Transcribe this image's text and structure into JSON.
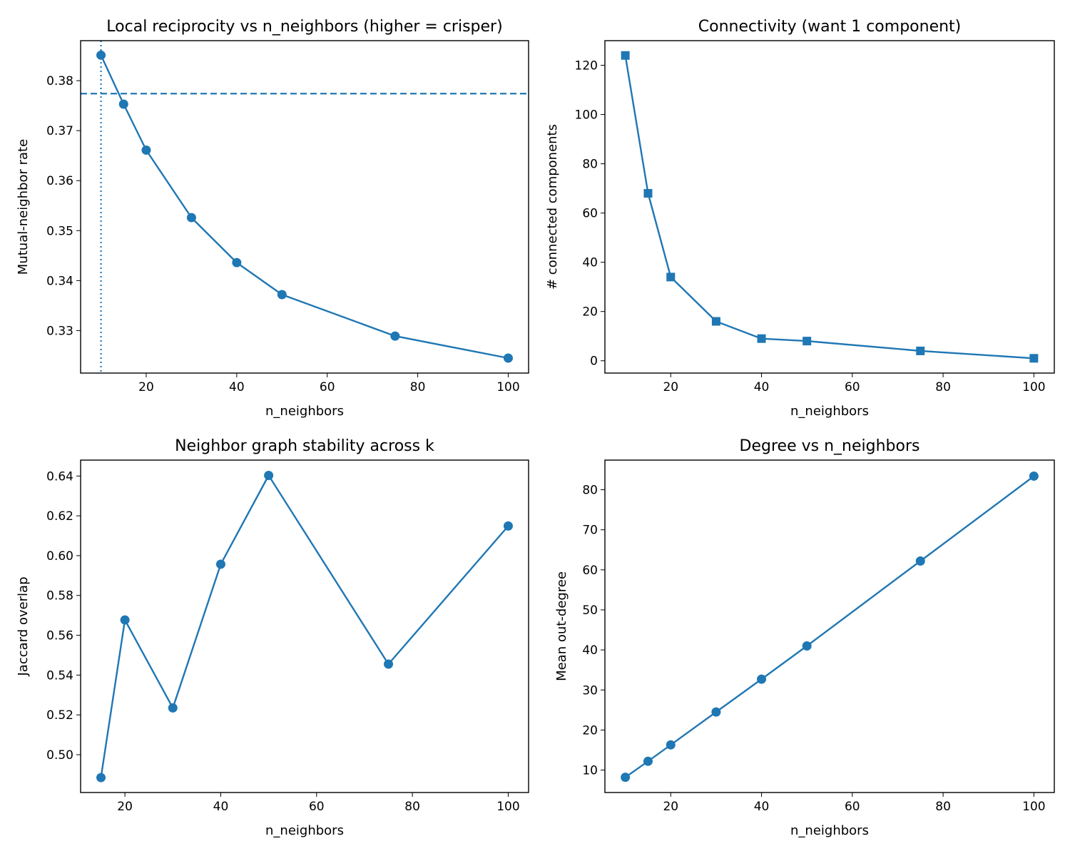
{
  "chart_data": [
    {
      "type": "line",
      "title": "Local reciprocity vs n_neighbors (higher = crisper)",
      "xlabel": "n_neighbors",
      "ylabel": "Mutual-neighbor rate",
      "xlim": [
        5.5,
        104.5
      ],
      "ylim": [
        0.3215,
        0.388
      ],
      "xticks": [
        20,
        40,
        60,
        80,
        100
      ],
      "yticks": [
        0.33,
        0.34,
        0.35,
        0.36,
        0.37,
        0.38
      ],
      "tick_decimals": 2,
      "marker": "circle",
      "color": "#1f77b4",
      "grid": false,
      "x": [
        10,
        15,
        20,
        30,
        40,
        50,
        75,
        100
      ],
      "y": [
        0.3851,
        0.3753,
        0.3661,
        0.3526,
        0.3436,
        0.3372,
        0.3289,
        0.3245
      ],
      "hline": {
        "y": 0.3774,
        "style": "dashed"
      },
      "vline": {
        "x": 10,
        "style": "dotted"
      }
    },
    {
      "type": "line",
      "title": "Connectivity (want 1 component)",
      "xlabel": "n_neighbors",
      "ylabel": "# connected components",
      "xlim": [
        5.5,
        104.5
      ],
      "ylim": [
        -5,
        130
      ],
      "xticks": [
        20,
        40,
        60,
        80,
        100
      ],
      "yticks": [
        0,
        20,
        40,
        60,
        80,
        100,
        120
      ],
      "tick_decimals": 0,
      "marker": "square",
      "color": "#1f77b4",
      "grid": false,
      "x": [
        10,
        15,
        20,
        30,
        40,
        50,
        75,
        100
      ],
      "y": [
        124,
        68,
        34,
        16,
        9,
        8,
        4,
        1
      ]
    },
    {
      "type": "line",
      "title": "Neighbor graph stability across k",
      "xlabel": "n_neighbors",
      "ylabel": "Jaccard overlap",
      "xlim": [
        10.75,
        104.25
      ],
      "ylim": [
        0.481,
        0.648
      ],
      "xticks": [
        20,
        40,
        60,
        80,
        100
      ],
      "yticks": [
        0.5,
        0.52,
        0.54,
        0.56,
        0.58,
        0.6,
        0.62,
        0.64
      ],
      "tick_decimals": 2,
      "marker": "circle",
      "color": "#1f77b4",
      "grid": false,
      "x": [
        15,
        20,
        30,
        40,
        50,
        75,
        100
      ],
      "y": [
        0.4885,
        0.5677,
        0.5235,
        0.5957,
        0.6403,
        0.5455,
        0.6149
      ]
    },
    {
      "type": "line",
      "title": "Degree vs n_neighbors",
      "xlabel": "n_neighbors",
      "ylabel": "Mean out-degree",
      "xlim": [
        5.5,
        104.5
      ],
      "ylim": [
        4.4,
        87.4
      ],
      "xticks": [
        20,
        40,
        60,
        80,
        100
      ],
      "yticks": [
        10,
        20,
        30,
        40,
        50,
        60,
        70,
        80
      ],
      "tick_decimals": 0,
      "marker": "circle",
      "color": "#1f77b4",
      "grid": false,
      "x": [
        10,
        15,
        20,
        30,
        40,
        50,
        75,
        100
      ],
      "y": [
        8.2,
        12.2,
        16.3,
        24.5,
        32.7,
        41.0,
        62.2,
        83.4
      ]
    }
  ]
}
